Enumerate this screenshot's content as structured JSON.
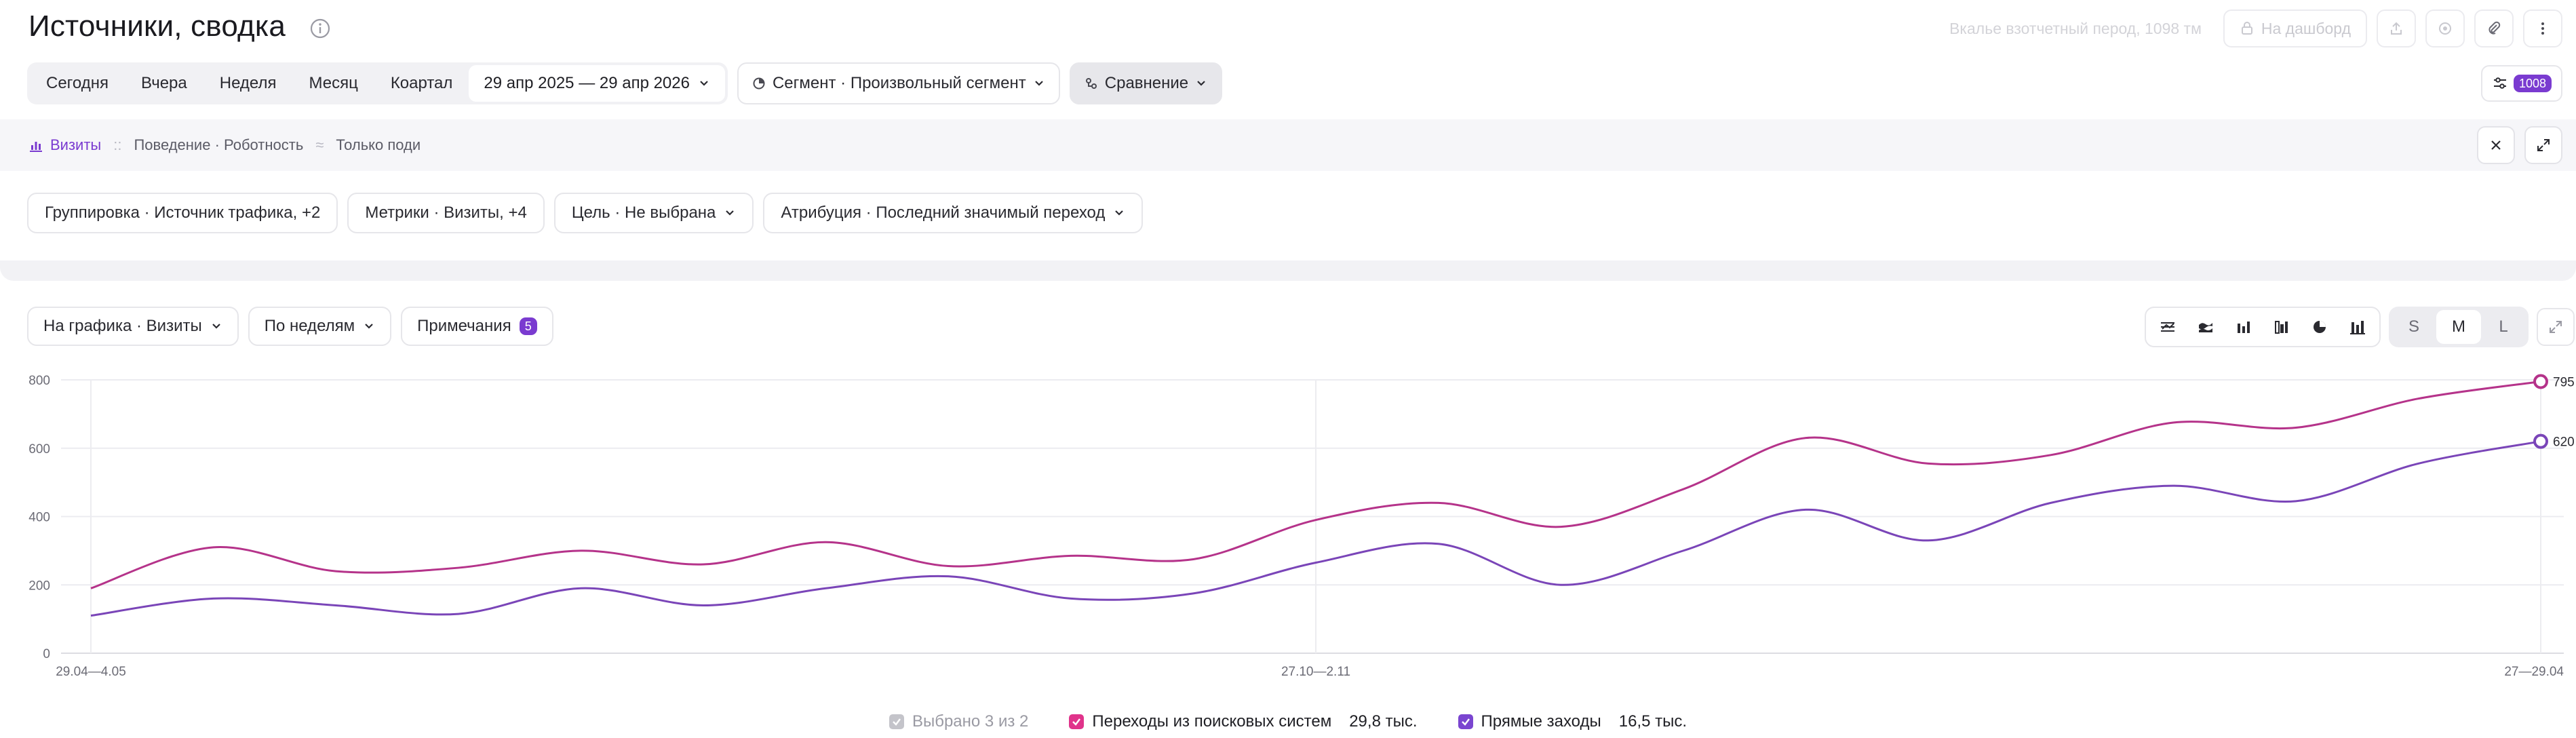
{
  "header": {
    "title": "Источники, сводка",
    "hint": "Вкалье взотчетный перод, 1098 тм",
    "dashboard_label": "На дашборд",
    "icons": [
      "info-icon",
      "lock-icon",
      "share-icon",
      "subscribe-icon",
      "attach-icon",
      "more-icon"
    ]
  },
  "period": {
    "items": [
      "Сегодня",
      "Вчера",
      "Неделя",
      "Месяц",
      "Коартал"
    ],
    "date_range": "29 апр 2025 — 29 апр 2026",
    "segment": "Сегмент · Произвольный сегмент",
    "comparison": "Сравнение",
    "filter_badge": "1008"
  },
  "breadcrumb": {
    "visits": "Визиты",
    "sep1": "::",
    "behavior": "Поведение · Роботность",
    "sep2": "≈",
    "only": "Только поди"
  },
  "settings": {
    "grouping": "Группировка · Источник трафика, +2",
    "metrics": "Метрики · Визиты, +4",
    "goal": "Цель · Не выбрана",
    "attribution": "Атрибуция · Последний значимый переход"
  },
  "chart_controls": {
    "chart_metric": "На графика · Визиты",
    "interval": "По неделям",
    "notes": "Примечания",
    "notes_count": "5",
    "sizes": [
      "S",
      "M",
      "L"
    ],
    "active_size": "M"
  },
  "chart_data": {
    "type": "line",
    "yticks": [
      "800",
      "600",
      "400",
      "200",
      "0"
    ],
    "ylim": [
      0,
      800
    ],
    "xlabels": [
      "29.04—4.05",
      "27.10—2.11",
      "27—29.04"
    ],
    "end_labels": [
      "795",
      "620"
    ],
    "series": [
      {
        "name": "Переходы из поисковых систем",
        "color": "#b5338a",
        "values": [
          190,
          310,
          240,
          250,
          300,
          260,
          325,
          255,
          285,
          275,
          390,
          440,
          370,
          480,
          630,
          555,
          580,
          675,
          660,
          745,
          795
        ]
      },
      {
        "name": "Прямые заходы",
        "color": "#7a45b8",
        "values": [
          110,
          160,
          140,
          115,
          190,
          140,
          190,
          225,
          160,
          175,
          265,
          320,
          200,
          300,
          420,
          330,
          440,
          490,
          445,
          555,
          620
        ]
      }
    ]
  },
  "legend": {
    "selected": "Выбрано 3 из 2",
    "items": [
      {
        "label": "Переходы из поисковых систем",
        "value": "29,8 тыс.",
        "color": "#e0338b"
      },
      {
        "label": "Прямые заходы",
        "value": "16,5 тыс.",
        "color": "#7a45d0"
      }
    ]
  }
}
